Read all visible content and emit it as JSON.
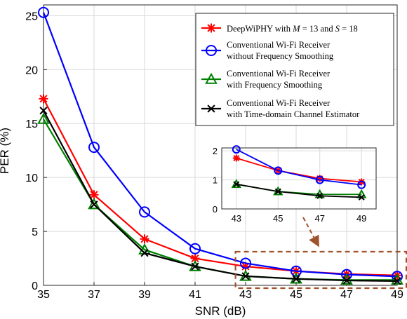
{
  "chart_data": {
    "type": "line",
    "xlabel": "SNR (dB)",
    "ylabel": "PER (%)",
    "x": [
      35,
      37,
      39,
      41,
      43,
      45,
      47,
      49
    ],
    "xticks": [
      "35",
      "37",
      "39",
      "41",
      "43",
      "45",
      "47",
      "49"
    ],
    "yticks": [
      "0",
      "5",
      "10",
      "15",
      "20",
      "25"
    ],
    "xlim": [
      35,
      49
    ],
    "ylim": [
      0,
      26
    ],
    "grid": true,
    "legend_position": "top-right",
    "series": [
      {
        "name": "DeepWiPHY with M = 13 and S = 18",
        "legend_label": {
          "prefix": "DeepWiPHY with ",
          "m": "M",
          "m_eq": " = 13 and ",
          "s": "S",
          "s_eq": " = 18"
        },
        "color": "#ff0000",
        "marker": "asterisk",
        "values": [
          17.3,
          8.4,
          4.3,
          2.5,
          1.75,
          1.32,
          1.05,
          0.93
        ]
      },
      {
        "name": "Conventional Wi-Fi Receiver without Frequency Smoothing",
        "legend_lines": [
          "Conventional Wi-Fi Receiver",
          "without Frequency Smoothing"
        ],
        "color": "#0000ff",
        "marker": "circle",
        "values": [
          25.3,
          12.8,
          6.8,
          3.4,
          2.05,
          1.32,
          1.0,
          0.83
        ]
      },
      {
        "name": "Conventional Wi-Fi Receiver with Frequency Smoothing",
        "legend_lines": [
          "Conventional Wi-Fi Receiver",
          "with Frequency Smoothing"
        ],
        "color": "#008000",
        "marker": "triangle",
        "values": [
          15.4,
          7.5,
          3.3,
          1.75,
          0.85,
          0.6,
          0.5,
          0.5
        ]
      },
      {
        "name": "Conventional Wi-Fi Receiver with Time-domain Channel Estimator",
        "legend_lines": [
          "Conventional Wi-Fi Receiver",
          "with Time-domain Channel Estimator"
        ],
        "color": "#000000",
        "marker": "x",
        "values": [
          16.2,
          7.5,
          3.0,
          1.75,
          0.85,
          0.6,
          0.45,
          0.4
        ]
      }
    ],
    "inset": {
      "x": [
        43,
        45,
        47,
        49
      ],
      "xticks": [
        "43",
        "45",
        "47",
        "49"
      ],
      "yticks": [
        "0",
        "1",
        "2"
      ],
      "xlim": [
        42.3,
        49.7
      ],
      "ylim": [
        0,
        2.1
      ]
    },
    "highlight_color": "#a0522d"
  }
}
